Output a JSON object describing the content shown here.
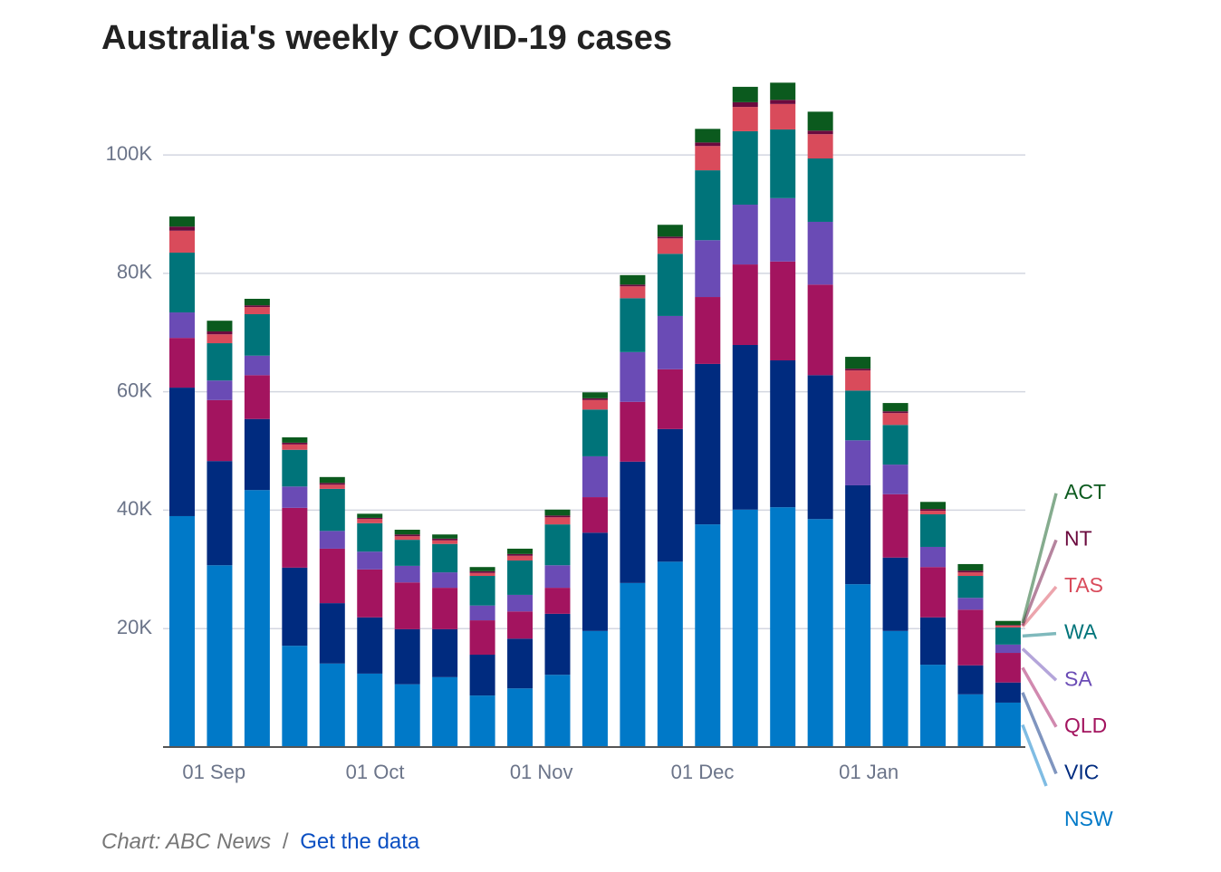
{
  "chart_data": {
    "type": "stacked_bar",
    "title": "Australia's weekly COVID-19 cases",
    "categories": [
      null,
      null,
      null,
      null,
      null,
      null,
      null,
      null,
      null,
      null,
      null,
      null,
      null,
      null,
      null,
      null,
      null,
      null,
      null,
      null,
      null,
      null,
      null
    ],
    "xticks": [
      {
        "value": 0.85,
        "label": "01 Sep"
      },
      {
        "value": 5.14,
        "label": "01 Oct"
      },
      {
        "value": 9.57,
        "label": "01 Nov"
      },
      {
        "value": 13.86,
        "label": "01 Dec"
      },
      {
        "value": 18.29,
        "label": "01 Jan"
      }
    ],
    "ylim": [
      0,
      115000
    ],
    "yticks": [
      {
        "value": 20000,
        "label": "20K"
      },
      {
        "value": 40000,
        "label": "40K"
      },
      {
        "value": 60000,
        "label": "60K"
      },
      {
        "value": 80000,
        "label": "80K"
      },
      {
        "value": 100000,
        "label": "100K"
      }
    ],
    "grid": true,
    "series": [
      {
        "name": "NSW",
        "color": "#0079c8",
        "values": [
          39000,
          30700,
          43400,
          17100,
          14100,
          12400,
          10600,
          11800,
          8700,
          9900,
          12200,
          19600,
          27700,
          31300,
          37600,
          40100,
          40500,
          38500,
          27500,
          19600,
          13900,
          8900,
          7500
        ]
      },
      {
        "name": "VIC",
        "color": "#002b7f",
        "values": [
          21700,
          17600,
          12000,
          13200,
          10200,
          9500,
          9300,
          8100,
          6900,
          8400,
          10300,
          16600,
          20500,
          22400,
          27100,
          27800,
          24800,
          24300,
          16700,
          12400,
          8000,
          4900,
          3400
        ]
      },
      {
        "name": "QLD",
        "color": "#a3145f",
        "values": [
          8400,
          10300,
          7400,
          10100,
          9200,
          8100,
          7900,
          7000,
          5800,
          4600,
          4400,
          6000,
          10100,
          10100,
          11300,
          13600,
          16700,
          15300,
          0,
          10700,
          8500,
          9400,
          5000
        ]
      },
      {
        "name": "SA",
        "color": "#6a4bb5",
        "values": [
          4300,
          3300,
          3300,
          3600,
          3000,
          3000,
          2800,
          2600,
          2500,
          2800,
          3800,
          6900,
          8400,
          9000,
          9600,
          10100,
          10700,
          10600,
          7600,
          5000,
          3400,
          2000,
          1400
        ]
      },
      {
        "name": "WA",
        "color": "#00747a",
        "values": [
          10100,
          6300,
          7000,
          6200,
          7100,
          4800,
          4400,
          4800,
          5000,
          5800,
          6900,
          7900,
          9100,
          10500,
          11800,
          12400,
          11600,
          10700,
          8400,
          6700,
          5500,
          3700,
          2900
        ]
      },
      {
        "name": "TAS",
        "color": "#d94b5b",
        "values": [
          3700,
          1500,
          1200,
          900,
          700,
          700,
          600,
          600,
          500,
          800,
          1200,
          1600,
          2000,
          2600,
          4100,
          4100,
          4300,
          4100,
          3400,
          2000,
          600,
          600,
          300
        ]
      },
      {
        "name": "NT",
        "color": "#6b0a3e",
        "values": [
          700,
          500,
          300,
          300,
          300,
          200,
          300,
          300,
          300,
          300,
          300,
          300,
          300,
          300,
          600,
          800,
          700,
          600,
          300,
          300,
          300,
          300,
          100
        ]
      },
      {
        "name": "ACT",
        "color": "#0b5a1e",
        "values": [
          1700,
          1800,
          1100,
          900,
          1000,
          700,
          800,
          700,
          700,
          900,
          1000,
          1000,
          1600,
          2000,
          2300,
          2600,
          2900,
          3200,
          2000,
          1400,
          1200,
          1100,
          700
        ]
      }
    ],
    "legend": "right",
    "footer": {
      "source": "Chart: ABC News",
      "separator": "/",
      "link": "Get the data"
    }
  }
}
